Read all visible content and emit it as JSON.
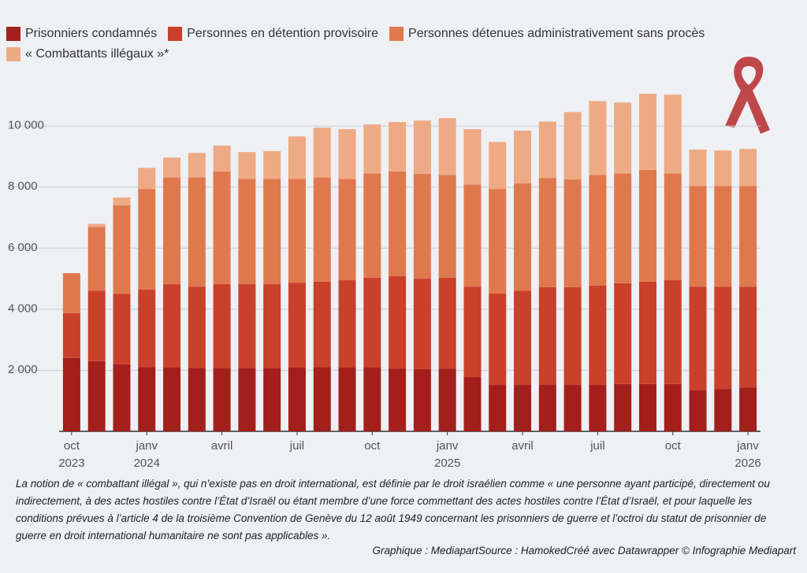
{
  "chart_data": {
    "type": "stacked-bar",
    "categories": [
      "oct\n2023",
      null,
      null,
      "janv\n2024",
      null,
      null,
      "avril",
      null,
      null,
      "juil",
      null,
      null,
      "oct",
      null,
      null,
      "janv\n2025",
      null,
      null,
      "avril",
      null,
      null,
      "juil",
      null,
      null,
      "oct",
      null,
      null,
      "janv\n2026"
    ],
    "series": [
      {
        "name": "Prisonniers condamnés",
        "color": "#a31f1c",
        "values": [
          2400,
          2300,
          2200,
          2100,
          2090,
          2080,
          2080,
          2080,
          2080,
          2090,
          2110,
          2090,
          2090,
          2060,
          2040,
          2060,
          1780,
          1520,
          1520,
          1520,
          1520,
          1520,
          1550,
          1550,
          1550,
          1340,
          1390,
          1440
        ]
      },
      {
        "name": "Personnes en détention provisoire",
        "color": "#c9402b",
        "values": [
          1470,
          2310,
          2300,
          2540,
          2730,
          2660,
          2740,
          2740,
          2740,
          2780,
          2790,
          2860,
          2940,
          3020,
          2960,
          2970,
          2960,
          2990,
          3090,
          3200,
          3200,
          3250,
          3300,
          3350,
          3400,
          3400,
          3350,
          3300
        ]
      },
      {
        "name": "Personnes détenues administrativement sans procès",
        "color": "#e0784e",
        "values": [
          1310,
          2090,
          2900,
          3300,
          3500,
          3580,
          3690,
          3450,
          3450,
          3400,
          3420,
          3320,
          3420,
          3430,
          3430,
          3370,
          3350,
          3430,
          3510,
          3580,
          3530,
          3630,
          3600,
          3660,
          3500,
          3300,
          3300,
          3300
        ]
      },
      {
        "name": "« Combattants illégaux »*",
        "color": "#eeaa84",
        "values": [
          0,
          100,
          260,
          690,
          650,
          800,
          850,
          880,
          910,
          1390,
          1630,
          1630,
          1600,
          1620,
          1750,
          1860,
          1810,
          1540,
          1730,
          1850,
          2210,
          2420,
          2320,
          2500,
          2580,
          1190,
          1160,
          1210
        ]
      }
    ],
    "ylim": [
      0,
      11500
    ],
    "yticks": [
      {
        "value": 2000,
        "label": "2 000"
      },
      {
        "value": 4000,
        "label": "4 000"
      },
      {
        "value": 6000,
        "label": "6 000"
      },
      {
        "value": 8000,
        "label": "8 000"
      },
      {
        "value": 10000,
        "label": "10 000"
      }
    ],
    "grid": true,
    "note": "La notion de « combattant illégal », qui n’existe pas en droit international, est définie par le droit israélien comme « une personne ayant participé, directement ou indirectement, à des actes hostiles contre l’État d’Israël ou étant membre d’une force commettant des actes hostiles contre l’État d’Israël, et pour laquelle les conditions prévues à l’article 4 de la troisième Convention de Genève du 12 août 1949 concernant les prisonniers de guerre et l’octroi du statut de prisonnier de guerre en droit international humanitaire ne sont pas applicables ».",
    "source": "Graphique : MediapartSource : HamokedCréé avec Datawrapper © Infographie Mediapart"
  }
}
